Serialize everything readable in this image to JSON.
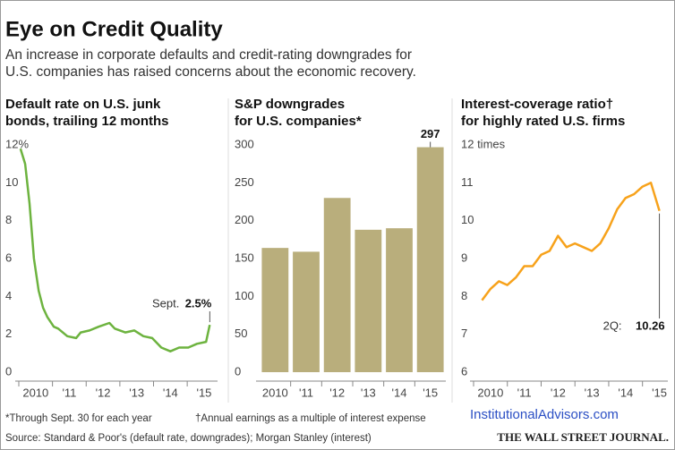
{
  "header": {
    "title": "Eye on Credit Quality",
    "subtitle": [
      "An increase in corporate defaults and credit-rating downgrades for",
      "U.S. companies has raised concerns about the economic recovery."
    ]
  },
  "chart_data": [
    {
      "type": "line",
      "title": [
        "Default rate on U.S. junk",
        "bonds, trailing 12 months"
      ],
      "color": "#6db33f",
      "x": [
        2010.05,
        2010.19,
        2010.32,
        2010.45,
        2010.59,
        2010.72,
        2010.85,
        2011.04,
        2011.17,
        2011.44,
        2011.7,
        2011.84,
        2012.1,
        2012.37,
        2012.69,
        2012.85,
        2013.16,
        2013.43,
        2013.7,
        2013.96,
        2014.23,
        2014.5,
        2014.76,
        2015.03,
        2015.29,
        2015.56,
        2015.67
      ],
      "values": [
        11.8,
        11,
        8.9,
        6,
        4.3,
        3.4,
        2.9,
        2.4,
        2.3,
        1.9,
        1.8,
        2.1,
        2.2,
        2.4,
        2.6,
        2.3,
        2.1,
        2.2,
        1.9,
        1.8,
        1.3,
        1.1,
        1.3,
        1.3,
        1.5,
        1.6,
        2.5
      ],
      "value_labels": [
        null,
        null,
        null,
        null,
        null,
        null,
        null,
        null,
        null,
        null,
        null,
        null,
        null,
        null,
        null,
        null,
        null,
        null,
        null,
        null,
        null,
        null,
        null,
        null,
        null,
        null,
        "2.5%"
      ],
      "annotation": "Sept.",
      "xlim": [
        2010,
        2015.9
      ],
      "xticks": [
        {
          "value": 2010,
          "label": "2010"
        },
        {
          "value": 2011,
          "label": "'11"
        },
        {
          "value": 2012,
          "label": "'12"
        },
        {
          "value": 2013,
          "label": "'13"
        },
        {
          "value": 2014,
          "label": "'14"
        },
        {
          "value": 2015,
          "label": "'15"
        }
      ],
      "ylim": [
        0,
        12
      ],
      "yticks": [
        0,
        2,
        4,
        6,
        8,
        10,
        {
          "value": 12,
          "label": "12%"
        }
      ]
    },
    {
      "type": "bar",
      "title": [
        "S&P downgrades",
        "for U.S. companies*"
      ],
      "color": "#b9ae7c",
      "categories": [
        "2010",
        "'11",
        "'12",
        "'13",
        "'14",
        "'15"
      ],
      "values": [
        164,
        159,
        230,
        188,
        190,
        297
      ],
      "ylim": [
        0,
        300
      ],
      "yticks": [
        0,
        50,
        100,
        150,
        200,
        250,
        300
      ]
    },
    {
      "type": "line",
      "title": [
        "Interest-coverage ratio†",
        "for highly rated U.S. firms"
      ],
      "color": "#f7a21b",
      "x": [
        2010.25,
        2010.5,
        2010.75,
        2011,
        2011.25,
        2011.5,
        2011.75,
        2012,
        2012.25,
        2012.5,
        2012.75,
        2013,
        2013.25,
        2013.5,
        2013.75,
        2014,
        2014.25,
        2014.5,
        2014.75,
        2015,
        2015.25,
        2015.5
      ],
      "values": [
        7.9,
        8.2,
        8.4,
        8.3,
        8.5,
        8.8,
        8.8,
        9.1,
        9.2,
        9.6,
        9.3,
        9.4,
        9.3,
        9.2,
        9.4,
        9.8,
        10.3,
        10.6,
        10.7,
        10.9,
        11,
        10.26
      ],
      "annotation": "2Q:",
      "xlim": [
        2010,
        2015.75
      ],
      "xticks": [
        {
          "value": 2010,
          "label": "2010"
        },
        {
          "value": 2011,
          "label": "'11"
        },
        {
          "value": 2012,
          "label": "'12"
        },
        {
          "value": 2013,
          "label": "'13"
        },
        {
          "value": 2014,
          "label": "'14"
        },
        {
          "value": 2015,
          "label": "'15"
        }
      ],
      "ylim": [
        6,
        12
      ],
      "yticks": [
        6,
        7,
        8,
        9,
        10,
        11,
        {
          "value": 12,
          "label": "12 times"
        }
      ]
    }
  ],
  "footer": {
    "notes": [
      "*Through Sept. 30 for each year",
      "†Annual earnings as a multiple of interest expense"
    ],
    "source": "Source: Standard & Poor's (default rate, downgrades); Morgan Stanley (interest)",
    "watermark": "InstitutionalAdvisors.com",
    "brand": "THE WALL STREET JOURNAL."
  }
}
